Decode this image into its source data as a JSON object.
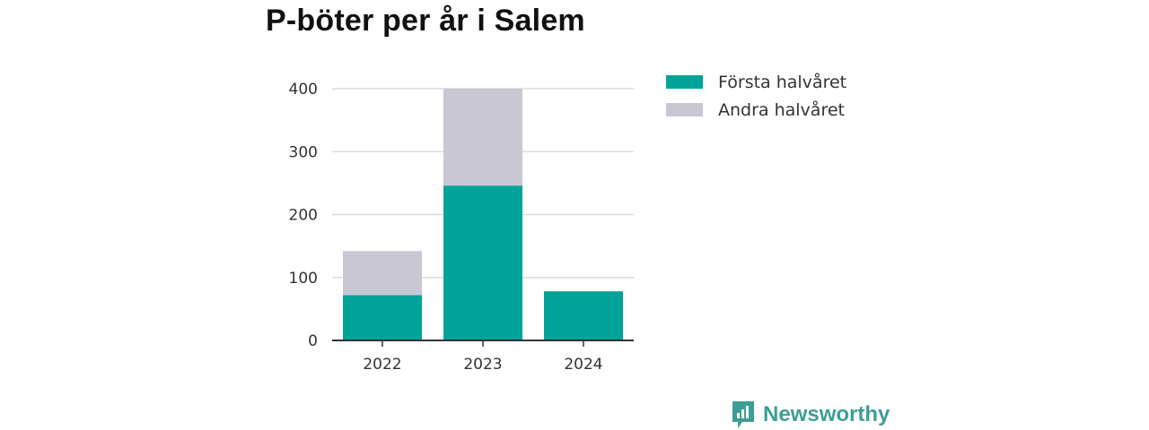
{
  "chart_data": {
    "type": "bar",
    "stacked": true,
    "title": "P-böter per år i Salem",
    "categories": [
      "2022",
      "2023",
      "2024"
    ],
    "series": [
      {
        "name": "Första halvåret",
        "color": "#00a398",
        "values": [
          72,
          246,
          78
        ]
      },
      {
        "name": "Andra halvåret",
        "color": "#c8c7d3",
        "values": [
          70,
          154,
          0
        ]
      }
    ],
    "ylim": [
      0,
      400
    ],
    "yticks": [
      0,
      100,
      200,
      300,
      400
    ],
    "grid": true,
    "legend_position": "top-right"
  },
  "brand": {
    "name": "Newsworthy",
    "color": "#3d9e95",
    "icon": "bar-chart-speech-icon"
  }
}
